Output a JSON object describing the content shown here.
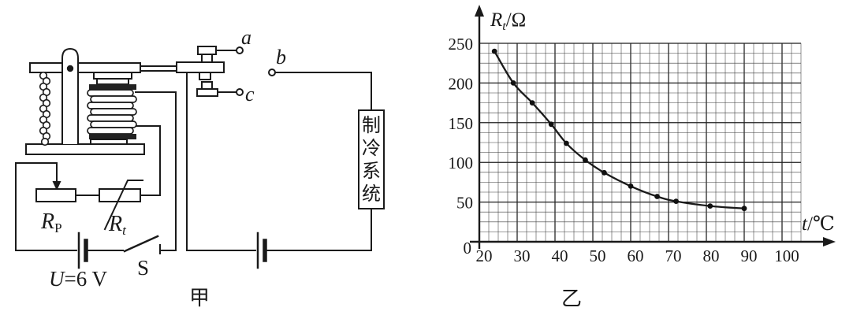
{
  "page": {
    "background": "#ffffff",
    "ink": "#1a1a1a"
  },
  "figure_captions": {
    "left": "甲",
    "right": "乙"
  },
  "circuit": {
    "terminal_a": "a",
    "terminal_b": "b",
    "terminal_c": "c",
    "potentiometer_label": "R_P",
    "potentiometer_parts": {
      "symbol": "R",
      "sub": "P"
    },
    "thermistor_label": "R_t",
    "thermistor_parts": {
      "symbol": "R",
      "sub": "t"
    },
    "battery_label": "U=6 V",
    "battery_parts": {
      "symbol": "U",
      "value": "=6 V"
    },
    "switch_label": "S",
    "cooling_box_label": "制冷系统"
  },
  "chart_data": {
    "type": "line",
    "title": "",
    "xlabel": "t/℃",
    "ylabel": "R_t/Ω",
    "xlabel_parts": {
      "symbol": "t",
      "unit": "/℃"
    },
    "ylabel_parts": {
      "symbol": "R",
      "symbol_sub": "t",
      "unit": "/Ω"
    },
    "origin_label": "0",
    "x_ticks": [
      20,
      30,
      40,
      50,
      60,
      70,
      80,
      90,
      100
    ],
    "y_ticks": [
      50,
      100,
      150,
      200,
      250
    ],
    "x_range": [
      20,
      105
    ],
    "y_range": [
      0,
      250
    ],
    "x_minor_step": 2.5,
    "y_minor_step": 12.5,
    "x_major_step": 10,
    "y_major_step": 50,
    "grid": true,
    "legend": "none",
    "marker": "dot",
    "line_color": "#1a1a1a",
    "grid_color": "#3a3a3a",
    "series": [
      {
        "name": "thermistor resistance vs temperature",
        "points": [
          [
            24,
            240
          ],
          [
            29,
            200
          ],
          [
            34,
            175
          ],
          [
            39,
            148
          ],
          [
            43,
            124
          ],
          [
            48,
            103
          ],
          [
            53,
            87
          ],
          [
            60,
            70
          ],
          [
            67,
            57
          ],
          [
            72,
            51
          ],
          [
            81,
            45
          ],
          [
            90,
            42
          ]
        ]
      }
    ]
  }
}
